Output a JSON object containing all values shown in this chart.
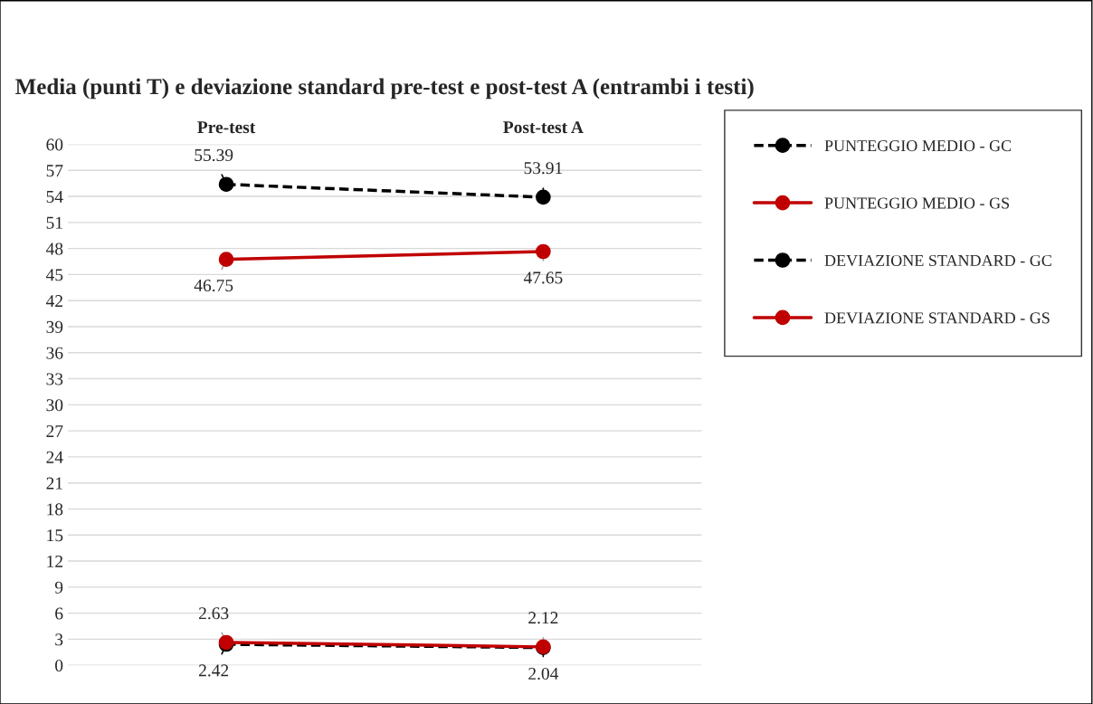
{
  "chart_data": {
    "type": "line",
    "title": "Media (punti T) e deviazione standard pre-test e post-test A (entrambi i testi)",
    "categories": [
      "Pre-test",
      "Post-test A"
    ],
    "series": [
      {
        "name": "PUNTEGGIO MEDIO - GC",
        "color": "#000000",
        "values": [
          55.39,
          53.91
        ],
        "line_style": "dashed"
      },
      {
        "name": "PUNTEGGIO MEDIO - GS",
        "color": "#c00000",
        "values": [
          46.75,
          47.65
        ],
        "line_style": "solid"
      },
      {
        "name": "DEVIAZIONE STANDARD - GC",
        "color": "#000000",
        "values": [
          2.42,
          2.04
        ],
        "line_style": "dashed"
      },
      {
        "name": "DEVIAZIONE STANDARD - GS",
        "color": "#c00000",
        "values": [
          2.63,
          2.12
        ],
        "line_style": "solid"
      }
    ],
    "ylim": [
      0,
      60
    ],
    "yticks": [
      0,
      3,
      6,
      9,
      12,
      15,
      18,
      21,
      24,
      27,
      30,
      33,
      36,
      39,
      42,
      45,
      48,
      51,
      54,
      57,
      60
    ],
    "grid": "y",
    "legend": "top right",
    "marker": "circle",
    "data_labels": true
  }
}
